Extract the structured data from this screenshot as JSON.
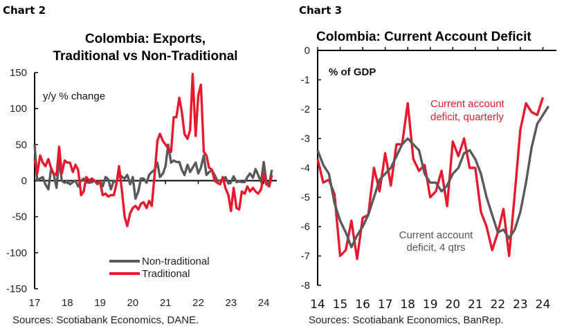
{
  "panels": {
    "left": {
      "label": "Chart 2",
      "source": "Sources: Scotiabank Economics, DANE."
    },
    "right": {
      "label": "Chart 3",
      "source": "Sources: Scotiabank Economics, BanRep."
    }
  },
  "chart_data": [
    {
      "type": "line",
      "title": "Colombia: Exports, Traditional vs Non-Traditional",
      "title_lines": [
        "Colombia: Exports,",
        "Traditional vs Non-Traditional"
      ],
      "ylabel": "y/y % change",
      "xlabel": "",
      "ylim": [
        -150,
        150
      ],
      "yticks": [
        150,
        100,
        50,
        0,
        -50,
        -100,
        -150
      ],
      "xlim": [
        2017,
        2024.4
      ],
      "xticks": [
        2017,
        2018,
        2019,
        2020,
        2021,
        2022,
        2023,
        2024
      ],
      "xtick_labels": [
        "17",
        "18",
        "19",
        "20",
        "21",
        "22",
        "23",
        "24"
      ],
      "grid": false,
      "legend": {
        "placement": "bottom-center",
        "entries": [
          "Non-traditional",
          "Traditional"
        ]
      },
      "colors": {
        "Non-traditional": "#595959",
        "Traditional": "#e8192c"
      },
      "series": [
        {
          "name": "Non-traditional",
          "x": [
            2017.0,
            2017.08,
            2017.17,
            2017.25,
            2017.33,
            2017.42,
            2017.5,
            2017.58,
            2017.67,
            2017.75,
            2017.83,
            2017.92,
            2018.0,
            2018.08,
            2018.17,
            2018.25,
            2018.33,
            2018.42,
            2018.5,
            2018.58,
            2018.67,
            2018.75,
            2018.83,
            2018.92,
            2019.0,
            2019.08,
            2019.17,
            2019.25,
            2019.33,
            2019.42,
            2019.5,
            2019.58,
            2019.67,
            2019.75,
            2019.83,
            2019.92,
            2020.0,
            2020.08,
            2020.17,
            2020.25,
            2020.33,
            2020.42,
            2020.5,
            2020.58,
            2020.67,
            2020.75,
            2020.83,
            2020.92,
            2021.0,
            2021.08,
            2021.17,
            2021.25,
            2021.33,
            2021.42,
            2021.5,
            2021.58,
            2021.67,
            2021.75,
            2021.83,
            2021.92,
            2022.0,
            2022.08,
            2022.17,
            2022.25,
            2022.33,
            2022.42,
            2022.5,
            2022.58,
            2022.67,
            2022.75,
            2022.83,
            2022.92,
            2023.0,
            2023.08,
            2023.17,
            2023.25,
            2023.33,
            2023.42,
            2023.5,
            2023.58,
            2023.67,
            2023.75,
            2023.83,
            2023.92,
            2024.0,
            2024.08,
            2024.17,
            2024.25
          ],
          "values": [
            50,
            0,
            3,
            5,
            -5,
            -12,
            15,
            10,
            -10,
            30,
            0,
            -3,
            0,
            -5,
            -2,
            0,
            -8,
            0,
            3,
            -2,
            -3,
            -2,
            0,
            -5,
            0,
            -8,
            5,
            2,
            -12,
            0,
            -2,
            10,
            5,
            3,
            8,
            -5,
            5,
            -25,
            -15,
            3,
            3,
            -3,
            8,
            12,
            15,
            25,
            5,
            10,
            20,
            50,
            25,
            28,
            26,
            26,
            15,
            8,
            22,
            12,
            18,
            25,
            10,
            18,
            35,
            8,
            12,
            14,
            8,
            0,
            0,
            0,
            5,
            -4,
            -2,
            6,
            -2,
            -1,
            -2,
            -2,
            5,
            10,
            4,
            16,
            8,
            -2,
            26,
            -2,
            -4,
            15
          ]
        },
        {
          "name": "Traditional",
          "x": [
            2017.0,
            2017.08,
            2017.17,
            2017.25,
            2017.33,
            2017.42,
            2017.5,
            2017.58,
            2017.67,
            2017.75,
            2017.83,
            2017.92,
            2018.0,
            2018.08,
            2018.17,
            2018.25,
            2018.33,
            2018.42,
            2018.5,
            2018.58,
            2018.67,
            2018.75,
            2018.83,
            2018.92,
            2019.0,
            2019.08,
            2019.17,
            2019.25,
            2019.33,
            2019.42,
            2019.5,
            2019.58,
            2019.67,
            2019.75,
            2019.83,
            2019.92,
            2020.0,
            2020.08,
            2020.17,
            2020.25,
            2020.33,
            2020.42,
            2020.5,
            2020.58,
            2020.67,
            2020.75,
            2020.83,
            2020.92,
            2021.0,
            2021.08,
            2021.17,
            2021.25,
            2021.33,
            2021.42,
            2021.5,
            2021.58,
            2021.67,
            2021.75,
            2021.83,
            2021.92,
            2022.0,
            2022.08,
            2022.17,
            2022.25,
            2022.33,
            2022.42,
            2022.5,
            2022.58,
            2022.67,
            2022.75,
            2022.83,
            2022.92,
            2023.0,
            2023.08,
            2023.17,
            2023.25,
            2023.33,
            2023.42,
            2023.5,
            2023.58,
            2023.67,
            2023.75,
            2023.83,
            2023.92,
            2024.0,
            2024.08,
            2024.17,
            2024.25
          ],
          "values": [
            30,
            10,
            35,
            25,
            20,
            30,
            18,
            10,
            8,
            47,
            10,
            28,
            25,
            25,
            12,
            22,
            15,
            -20,
            -15,
            5,
            0,
            3,
            0,
            -3,
            -2,
            -20,
            -18,
            -22,
            -20,
            -20,
            -5,
            20,
            -15,
            -50,
            -63,
            -45,
            -38,
            -35,
            -40,
            -32,
            -30,
            -38,
            -28,
            -35,
            10,
            55,
            65,
            55,
            50,
            45,
            40,
            88,
            88,
            115,
            95,
            65,
            58,
            70,
            148,
            62,
            118,
            133,
            40,
            35,
            18,
            15,
            0,
            -3,
            -5,
            5,
            -10,
            -20,
            -42,
            -10,
            -38,
            -40,
            -15,
            -18,
            -8,
            -15,
            -10,
            -15,
            -18,
            -12,
            10,
            -5,
            -8,
            8
          ]
        }
      ]
    },
    {
      "type": "line",
      "title": "Colombia: Current Account Deficit",
      "ylabel": "% of GDP",
      "xlabel": "",
      "ylim": [
        -8,
        0
      ],
      "yticks": [
        0,
        -1,
        -2,
        -3,
        -4,
        -5,
        -6,
        -7,
        -8
      ],
      "xlim": [
        2014,
        2024.6
      ],
      "xticks": [
        2014,
        2015,
        2016,
        2017,
        2018,
        2019,
        2020,
        2021,
        2022,
        2023,
        2024
      ],
      "xtick_labels": [
        "14",
        "15",
        "16",
        "17",
        "18",
        "19",
        "20",
        "21",
        "22",
        "23",
        "24"
      ],
      "grid": false,
      "colors": {
        "Current account deficit, quarterly": "#e8192c",
        "Current account deficit, 4 qtrs": "#595959"
      },
      "annotations": [
        {
          "text": "Current account deficit, quarterly",
          "lines": [
            "Current account",
            "deficit, quarterly"
          ],
          "series": "quarterly",
          "placement": "upper-right"
        },
        {
          "text": "Current account deficit, 4 qtrs",
          "lines": [
            "Current account",
            "deficit, 4 qtrs"
          ],
          "series": "4 qtrs",
          "placement": "lower-center"
        }
      ],
      "series": [
        {
          "name": "Current account deficit, quarterly",
          "x": [
            2014.0,
            2014.25,
            2014.5,
            2014.75,
            2015.0,
            2015.25,
            2015.5,
            2015.75,
            2016.0,
            2016.25,
            2016.5,
            2016.75,
            2017.0,
            2017.25,
            2017.5,
            2017.75,
            2018.0,
            2018.25,
            2018.5,
            2018.75,
            2019.0,
            2019.25,
            2019.5,
            2019.75,
            2020.0,
            2020.25,
            2020.5,
            2020.75,
            2021.0,
            2021.25,
            2021.5,
            2021.75,
            2022.0,
            2022.25,
            2022.5,
            2022.75,
            2023.0,
            2023.25,
            2023.5,
            2023.75,
            2024.0,
            2024.25,
            2024.5
          ],
          "values": [
            -3.7,
            -4.5,
            -4.4,
            -4.9,
            -7.0,
            -6.8,
            -5.8,
            -7.1,
            -5.7,
            -5.6,
            -4.0,
            -4.8,
            -3.5,
            -4.6,
            -3.2,
            -3.2,
            -1.8,
            -3.7,
            -4.1,
            -3.9,
            -5.0,
            -4.8,
            -4.1,
            -5.3,
            -3.1,
            -3.6,
            -3.0,
            -4.0,
            -4.0,
            -5.5,
            -6.0,
            -6.8,
            -6.2,
            -5.4,
            -7.0,
            -4.9,
            -2.7,
            -1.8,
            -2.1,
            -2.2,
            -1.6,
            null,
            null
          ]
        },
        {
          "name": "Current account deficit, 4 qtrs",
          "x": [
            2014.0,
            2014.25,
            2014.5,
            2014.75,
            2015.0,
            2015.25,
            2015.5,
            2015.75,
            2016.0,
            2016.25,
            2016.5,
            2016.75,
            2017.0,
            2017.25,
            2017.5,
            2017.75,
            2018.0,
            2018.25,
            2018.5,
            2018.75,
            2019.0,
            2019.25,
            2019.5,
            2019.75,
            2020.0,
            2020.25,
            2020.5,
            2020.75,
            2021.0,
            2021.25,
            2021.5,
            2021.75,
            2022.0,
            2022.25,
            2022.5,
            2022.75,
            2023.0,
            2023.25,
            2023.5,
            2023.75,
            2024.0,
            2024.25,
            2024.5
          ],
          "values": [
            -3.4,
            -3.9,
            -4.2,
            -5.2,
            -5.8,
            -6.2,
            -6.7,
            -6.3,
            -6.0,
            -5.6,
            -5.0,
            -4.4,
            -4.2,
            -4.0,
            -3.6,
            -3.2,
            -3.0,
            -3.2,
            -3.4,
            -4.2,
            -4.5,
            -4.5,
            -4.8,
            -4.6,
            -4.2,
            -4.0,
            -3.5,
            -3.4,
            -3.7,
            -4.2,
            -5.0,
            -5.6,
            -6.2,
            -6.1,
            -6.4,
            -6.1,
            -5.5,
            -4.5,
            -3.3,
            -2.5,
            -2.2,
            -1.9,
            null
          ]
        }
      ]
    }
  ]
}
